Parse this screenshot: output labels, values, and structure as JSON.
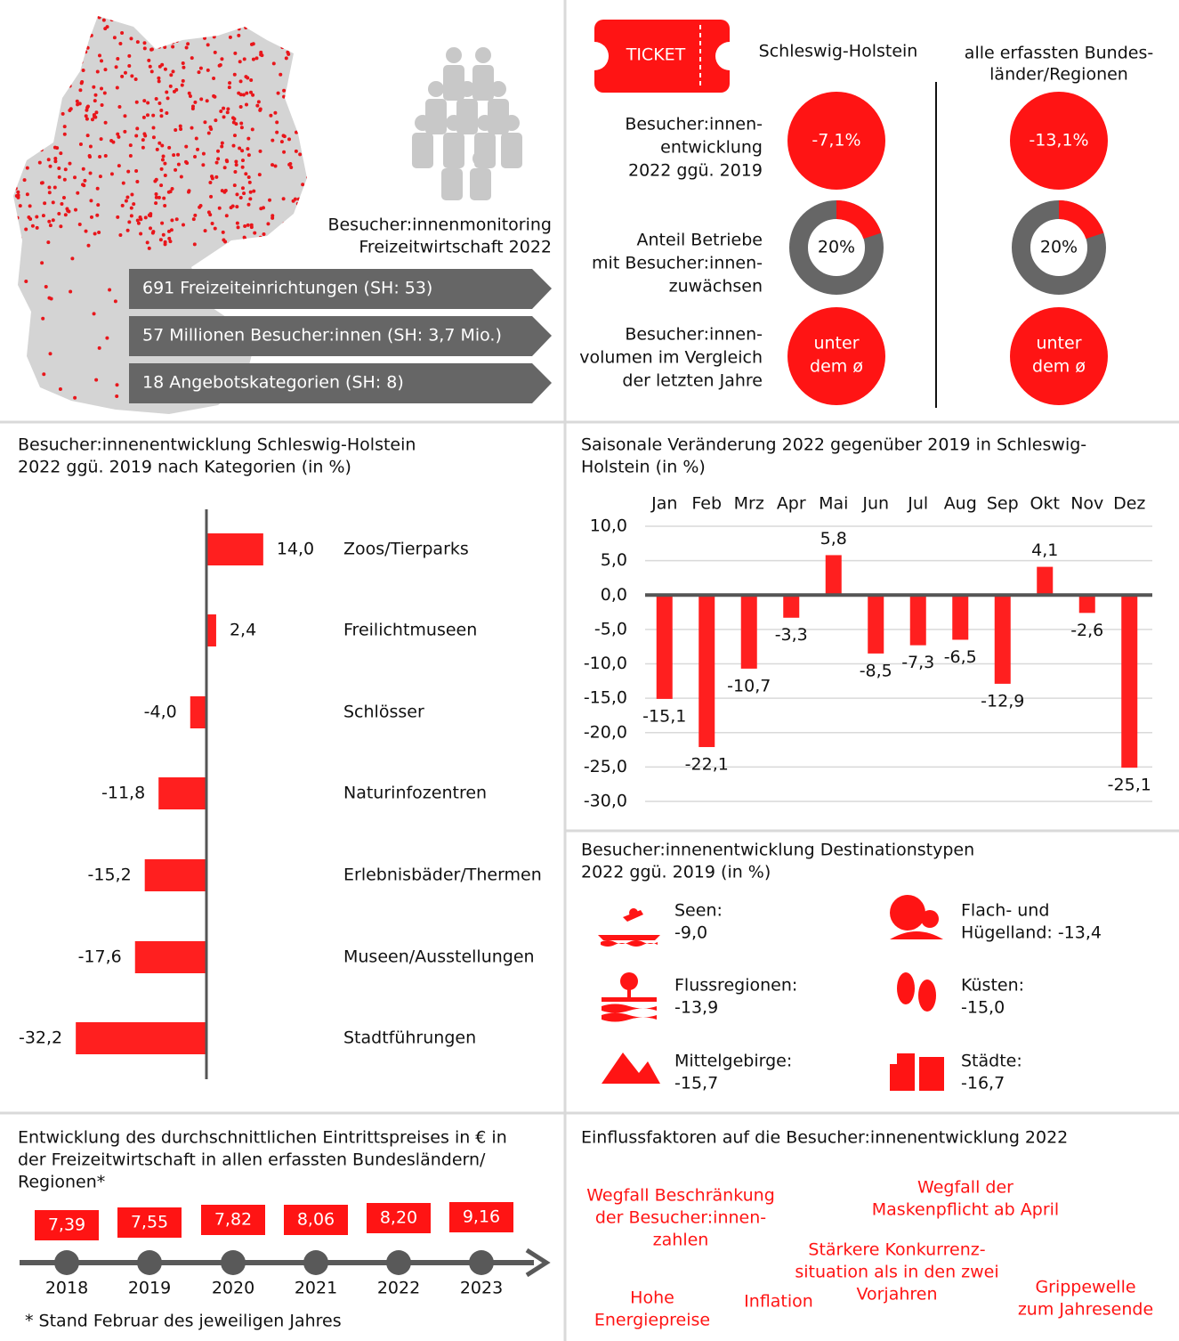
{
  "overview": {
    "title": [
      "Besucher:innenmonitoring",
      "Freizeitwirtschaft 2022"
    ],
    "banners": [
      "691 Freizeiteinrichtungen (SH: 53)",
      "57 Millionen Besucher:innen (SH: 3,7 Mio.)",
      "18 Angebotskategorien (SH: 8)"
    ]
  },
  "comparison": {
    "ticket": "TICKET",
    "columns": [
      [
        "Schleswig-Holstein"
      ],
      [
        "alle erfassten Bundes-",
        "länder/Regionen"
      ]
    ],
    "development": {
      "label": [
        "Besucher:innen-",
        "entwicklung",
        "2022 ggü. 2019"
      ],
      "values": [
        "-7,1%",
        "-13,1%"
      ]
    },
    "growth_share": {
      "label": [
        "Anteil Betriebe",
        "mit Besucher:innen-",
        "zuwächsen"
      ],
      "values": [
        {
          "value": 20,
          "label": "20%"
        },
        {
          "value": 20,
          "label": "20%"
        }
      ]
    },
    "volume": {
      "label": [
        "Besucher:innen-",
        "volumen im Vergleich",
        "der letzten Jahre"
      ],
      "values": [
        [
          "unter",
          "dem ø"
        ],
        [
          "unter",
          "dem ø"
        ]
      ]
    }
  },
  "chart_data": [
    {
      "type": "hbar",
      "title": [
        "Besucher:innenentwicklung Schleswig-Holstein",
        "2022 ggü. 2019 nach Kategorien (in %)"
      ],
      "categories": [
        "Zoos/Tierparks",
        "Freilichtmuseen",
        "Schlösser",
        "Naturinfozentren",
        "Erlebnisbäder/Thermen",
        "Museen/Ausstellungen",
        "Stadtführungen"
      ],
      "values": [
        14.0,
        2.4,
        -4.0,
        -11.8,
        -15.2,
        -17.6,
        -32.2
      ],
      "value_labels": [
        "14,0",
        "2,4",
        "-4,0",
        "-11,8",
        "-15,2",
        "-17,6",
        "-32,2"
      ],
      "color": "#ff1f1f"
    },
    {
      "type": "bar",
      "title": [
        "Saisonale Veränderung 2022 gegenüber 2019 in Schleswig-",
        "Holstein (in %)"
      ],
      "categories": [
        "Jan",
        "Feb",
        "Mrz",
        "Apr",
        "Mai",
        "Jun",
        "Jul",
        "Aug",
        "Sep",
        "Okt",
        "Nov",
        "Dez"
      ],
      "values": [
        -15.1,
        -22.1,
        -10.7,
        -3.3,
        5.8,
        -8.5,
        -7.3,
        -6.5,
        -12.9,
        4.1,
        -2.6,
        -25.1
      ],
      "value_labels": [
        "-15,1",
        "-22,1",
        "-10,7",
        "-3,3",
        "5,8",
        "-8,5",
        "-7,3",
        "-6,5",
        "-12,9",
        "4,1",
        "-2,6",
        "-25,1"
      ],
      "ylim": [
        -30,
        10
      ],
      "yticks": [
        {
          "value": 10,
          "label": "10,0"
        },
        {
          "value": 5,
          "label": "5,0"
        },
        {
          "value": 0,
          "label": "0,0"
        },
        {
          "value": -5,
          "label": "-5,0"
        },
        {
          "value": -10,
          "label": "-10,0"
        },
        {
          "value": -15,
          "label": "-15,0"
        },
        {
          "value": -20,
          "label": "-20,0"
        },
        {
          "value": -25,
          "label": "-25,0"
        },
        {
          "value": -30,
          "label": "-30,0"
        }
      ],
      "grid": true,
      "color": "#ff1f1f"
    }
  ],
  "destinations": {
    "title": [
      "Besucher:innenentwicklung Destinationstypen",
      "2022 ggü. 2019 (in %)"
    ],
    "items": [
      [
        "Seen:",
        "-9,0"
      ],
      [
        "Flach- und",
        "Hügelland: -13,4"
      ],
      [
        "Flussregionen:",
        "-13,9"
      ],
      [
        "Küsten:",
        "-15,0"
      ],
      [
        "Mittelgebirge:",
        "-15,7"
      ],
      [
        "Städte:",
        "-16,7"
      ]
    ]
  },
  "prices": {
    "title": [
      "Entwicklung des durchschnittlichen Eintrittspreises in € in",
      "der Freizeitwirtschaft in allen erfassten Bundesländern/",
      "Regionen*"
    ],
    "years": [
      "2018",
      "2019",
      "2020",
      "2021",
      "2022",
      "2023"
    ],
    "values": [
      "7,39",
      "7,55",
      "7,82",
      "8,06",
      "8,20",
      "9,16"
    ],
    "note": "* Stand Februar des jeweiligen Jahres"
  },
  "factors": {
    "title": "Einflussfaktoren auf die Besucher:innenentwicklung 2022",
    "items": [
      [
        "Wegfall Beschränkung",
        "der Besucher:innen-",
        "zahlen"
      ],
      [
        "Wegfall der",
        "Maskenpflicht ab April"
      ],
      [
        "Stärkere Konkurrenz-",
        "situation als in den zwei",
        "Vorjahren"
      ],
      [
        "Hohe",
        "Energiepreise"
      ],
      [
        "Inflation"
      ],
      [
        "Grippewelle",
        "zum Jahresende"
      ]
    ]
  }
}
